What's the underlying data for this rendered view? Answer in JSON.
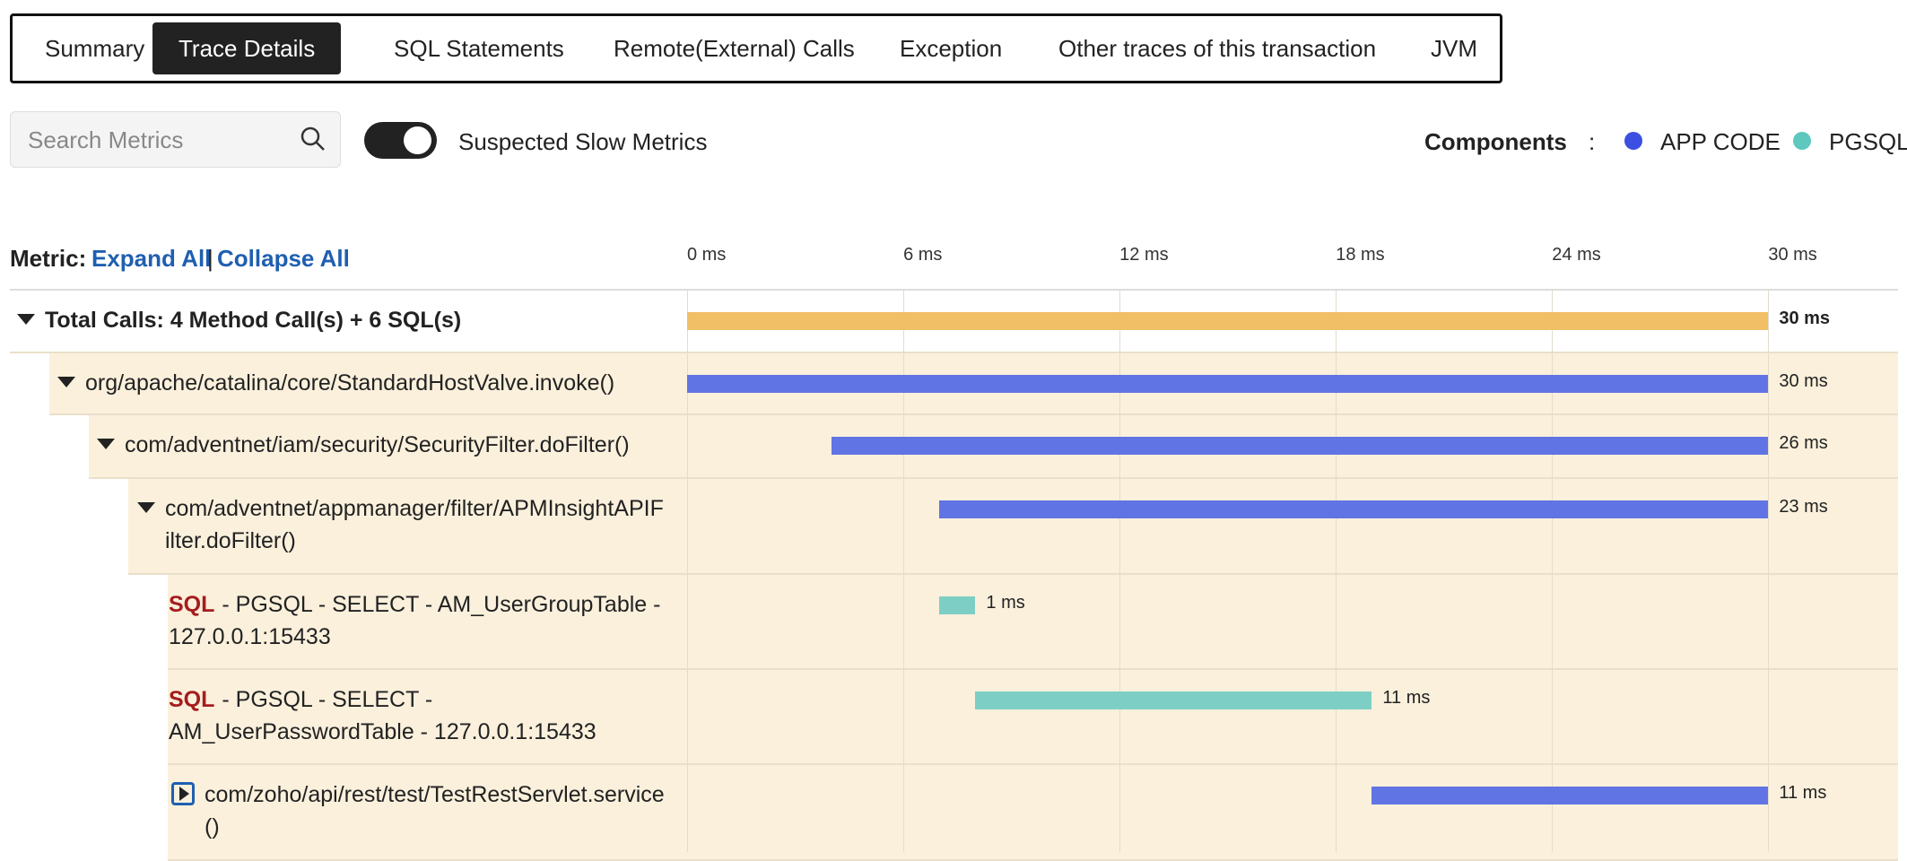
{
  "tabs": [
    "Summary",
    "Trace Details",
    "SQL Statements",
    "Remote(External) Calls",
    "Exception",
    "Other traces of this transaction",
    "JVM"
  ],
  "active_tab": 1,
  "search_placeholder": "Search Metrics",
  "toggle_label": "Suspected Slow Metrics",
  "components": {
    "title": "Components",
    "separator": ":",
    "items": [
      {
        "name": "APP CODE",
        "color": "#3d4fe0"
      },
      {
        "name": "PGSQL",
        "color": "#5cc8be"
      }
    ]
  },
  "metric_header": {
    "label": "Metric:",
    "expand": "Expand All",
    "divider": "|",
    "collapse": "Collapse All"
  },
  "timeline": {
    "xlim": [
      0,
      33.6
    ],
    "ticks": [
      {
        "value": 0,
        "label": "0 ms"
      },
      {
        "value": 6,
        "label": "6 ms"
      },
      {
        "value": 12,
        "label": "12 ms"
      },
      {
        "value": 18,
        "label": "18 ms"
      },
      {
        "value": 24,
        "label": "24 ms"
      },
      {
        "value": 30,
        "label": "30 ms"
      }
    ]
  },
  "rows": [
    {
      "label": "Total Calls: 4 Method Call(s) + 6 SQL(s)",
      "start": 0,
      "duration": 30,
      "duration_label": "30 ms",
      "color": "#f0bf66"
    },
    {
      "label": "org/apache/catalina/core/StandardHostValve.invoke()",
      "start": 0,
      "duration": 30,
      "duration_label": "30 ms",
      "color": "#6174e3"
    },
    {
      "label": "com/adventnet/iam/security/SecurityFilter.doFilter()",
      "start": 4,
      "duration": 26,
      "duration_label": "26 ms",
      "color": "#6174e3"
    },
    {
      "label": "com/adventnet/appmanager/filter/APMInsightAPIFilter.doFilter()",
      "start": 7,
      "duration": 23,
      "duration_label": "23 ms",
      "color": "#6174e3"
    },
    {
      "tag": "SQL",
      "label": "- PGSQL - SELECT - AM_UserGroupTable - 127.0.0.1:15433",
      "start": 7,
      "duration": 1,
      "duration_label": "1 ms",
      "color": "#7dcfc5"
    },
    {
      "tag": "SQL",
      "label": "- PGSQL - SELECT - AM_UserPasswordTable - 127.0.0.1:15433",
      "start": 8,
      "duration": 11,
      "duration_label": "11 ms",
      "color": "#7dcfc5"
    },
    {
      "label": "com/zoho/api/rest/test/TestRestServlet.service()",
      "start": 19,
      "duration": 11,
      "duration_label": "11 ms",
      "color": "#6174e3"
    }
  ]
}
